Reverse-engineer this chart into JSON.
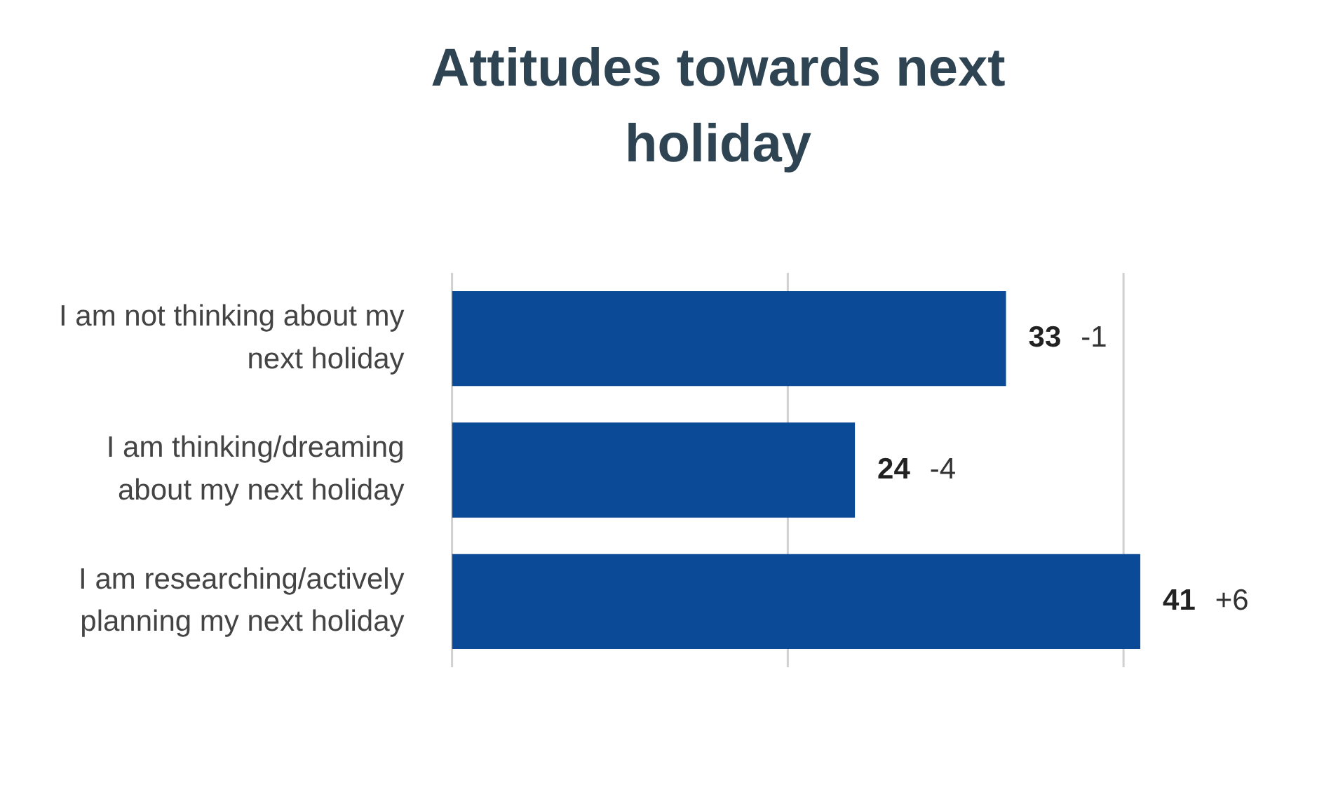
{
  "chart_data": {
    "type": "bar",
    "orientation": "horizontal",
    "title": "Attitudes towards next holiday",
    "categories": [
      "I am not thinking about my next holiday",
      "I am thinking/dreaming about my next holiday",
      "I am researching/actively planning my next holiday"
    ],
    "values": [
      33,
      24,
      41
    ],
    "color": "#0b4a96",
    "data_labels": true,
    "ref_lines": [
      {
        "axis": "x",
        "value": 0,
        "color": "#d0d0d0"
      },
      {
        "axis": "x",
        "value": 20,
        "color": "#d0d0d0"
      },
      {
        "axis": "x",
        "value": 40,
        "color": "#d0d0d0"
      }
    ],
    "tick_labels": "y",
    "legend": false,
    "annotations": [
      {
        "text": "-1",
        "x": 33,
        "y": "I am not thinking about my next holiday"
      },
      {
        "text": "-4",
        "x": 24,
        "y": "I am thinking/dreaming about my next holiday"
      },
      {
        "text": "+6",
        "x": 41,
        "y": "I am researching/actively planning my next holiday"
      }
    ]
  }
}
